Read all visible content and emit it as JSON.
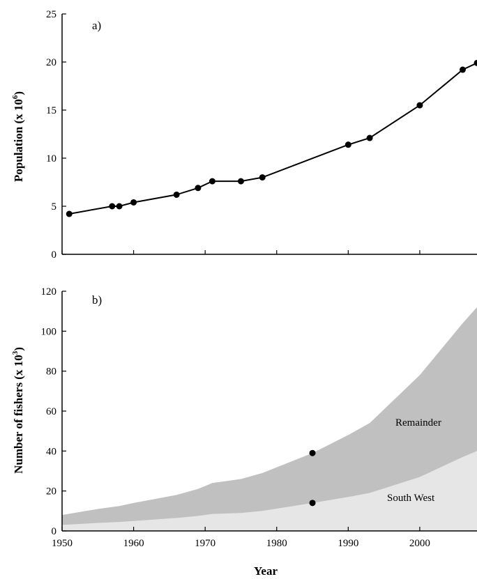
{
  "chart_data": [
    {
      "type": "line",
      "panel_label": "a)",
      "ylabel": "Population (x 10",
      "ylabel_sup": "6",
      "ylabel_end": ")",
      "xlim": [
        1950,
        2008
      ],
      "ylim": [
        0,
        25
      ],
      "x_ticks": [
        1950,
        1960,
        1970,
        1980,
        1990,
        2000
      ],
      "y_ticks": [
        0,
        5,
        10,
        15,
        20,
        25
      ],
      "series": [
        {
          "x": [
            1951,
            1957,
            1958,
            1960,
            1966,
            1969,
            1971,
            1975,
            1978,
            1990,
            1993,
            2000,
            2006,
            2008
          ],
          "y": [
            4.2,
            5.0,
            5.0,
            5.4,
            6.2,
            6.9,
            7.6,
            7.6,
            8.0,
            11.4,
            12.1,
            15.5,
            19.2,
            19.9
          ]
        }
      ],
      "color": "#000000"
    },
    {
      "type": "area",
      "panel_label": "b)",
      "xlabel": "Year",
      "ylabel": "Number of fishers (x 10",
      "ylabel_sup": "3",
      "ylabel_end": ")",
      "xlim": [
        1950,
        2008
      ],
      "ylim": [
        0,
        120
      ],
      "x_ticks": [
        1950,
        1960,
        1970,
        1980,
        1990,
        2000
      ],
      "x_tick_labels": [
        "1950",
        "1960",
        "1970",
        "1980",
        "1990",
        "2000"
      ],
      "y_ticks": [
        0,
        20,
        40,
        60,
        80,
        100,
        120
      ],
      "x": [
        1950,
        1955,
        1958,
        1960,
        1966,
        1969,
        1971,
        1975,
        1978,
        1985,
        1990,
        1993,
        2000,
        2006,
        2008
      ],
      "series": [
        {
          "name": "South West",
          "values": [
            3.0,
            4.0,
            4.5,
            5.0,
            6.5,
            7.5,
            8.5,
            9.0,
            10.0,
            14.0,
            17.0,
            19.0,
            27.0,
            37.0,
            40.0
          ],
          "color": "#e6e6e6"
        },
        {
          "name": "Remainder",
          "values": [
            8.0,
            11.0,
            12.5,
            14.0,
            18.0,
            21.0,
            24.0,
            26.0,
            29.0,
            39.0,
            48.0,
            54.0,
            78.0,
            104.0,
            112.0
          ],
          "color": "#c0c0c0"
        }
      ],
      "points": [
        {
          "x": 1985,
          "y": 39
        },
        {
          "x": 1985,
          "y": 14
        }
      ]
    }
  ]
}
